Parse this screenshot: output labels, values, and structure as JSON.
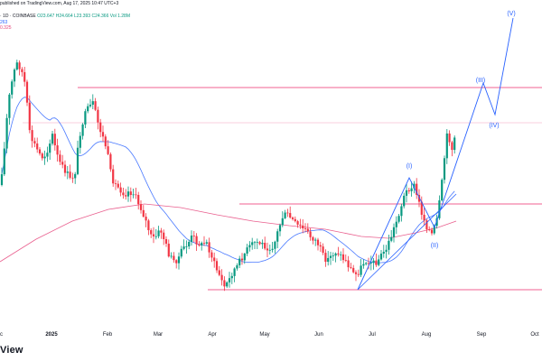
{
  "header": {
    "published": "published on TradingView.com, Aug 17, 2025 10:47 UTC+3",
    "symbol_line": {
      "prefix": "· 1D · COINBASE",
      "o": "O23.647",
      "h": "H24.664",
      "l": "L23.393",
      "c": "C24.366",
      "vol": "Vol 1.28M"
    },
    "ma_blue": "263",
    "ma_red": "0.325"
  },
  "brand": "View",
  "colors": {
    "up": "#089981",
    "down": "#f23645",
    "ma_fast": "#2962ff",
    "ma_slow": "#e5437a",
    "level": "#f06292",
    "wave": "#2962ff"
  },
  "chart_data": {
    "type": "candlestick",
    "x_tick_labels": [
      "c",
      "2025",
      "Feb",
      "Mar",
      "Apr",
      "May",
      "Jun",
      "Jul",
      "Aug",
      "Sep",
      "Oct"
    ],
    "wave_labels": [
      "(I)",
      "(II)",
      "(III)",
      "(IV)",
      "(V)"
    ],
    "horizontal_levels": 4,
    "moving_averages": 2,
    "grid": false,
    "price_axis_visible": false
  }
}
